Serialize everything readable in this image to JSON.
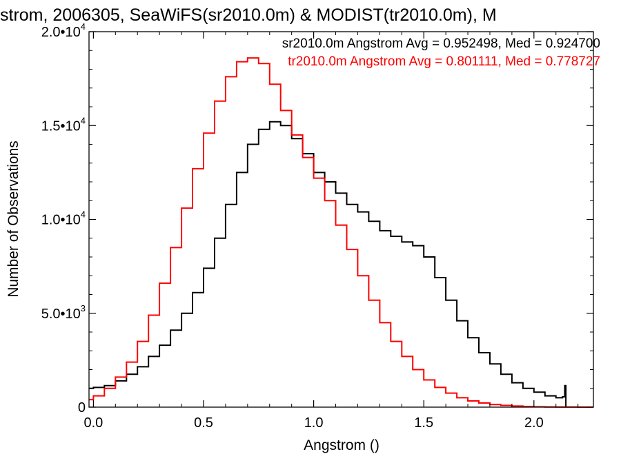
{
  "chart_data": {
    "type": "line",
    "title": "strom, 2006305, SeaWiFS(sr2010.0m) & MODIST(tr2010.0m), M",
    "xlabel": "Angstrom ()",
    "ylabel": "Number of Observations",
    "xlim": [
      -0.02,
      2.27
    ],
    "ylim": [
      0,
      20000
    ],
    "grid": false,
    "legend_position": "top-right",
    "x_ticks": [
      {
        "value": 0.0,
        "label": "0.0"
      },
      {
        "value": 0.5,
        "label": "0.5"
      },
      {
        "value": 1.0,
        "label": "1.0"
      },
      {
        "value": 1.5,
        "label": "1.5"
      },
      {
        "value": 2.0,
        "label": "2.0"
      }
    ],
    "y_ticks": [
      {
        "value": 0,
        "base": "0",
        "exp": ""
      },
      {
        "value": 5000,
        "base": "5.0•10",
        "exp": "3"
      },
      {
        "value": 10000,
        "base": "1.0•10",
        "exp": "4"
      },
      {
        "value": 15000,
        "base": "1.5•10",
        "exp": "4"
      },
      {
        "value": 20000,
        "base": "2.0•10",
        "exp": "4"
      }
    ],
    "series": [
      {
        "name": "sr2010.0m",
        "legend_label": "sr2010.0m Angstrom Avg = 0.952498, Med = 0.924700",
        "color": "#000000",
        "x": [
          -0.02,
          0.0,
          0.05,
          0.1,
          0.15,
          0.2,
          0.25,
          0.3,
          0.35,
          0.4,
          0.45,
          0.5,
          0.55,
          0.6,
          0.65,
          0.7,
          0.75,
          0.8,
          0.85,
          0.9,
          0.95,
          1.0,
          1.05,
          1.1,
          1.15,
          1.2,
          1.25,
          1.3,
          1.35,
          1.4,
          1.45,
          1.5,
          1.55,
          1.6,
          1.65,
          1.7,
          1.75,
          1.8,
          1.85,
          1.9,
          1.95,
          2.0,
          2.05,
          2.1,
          2.13,
          2.14,
          2.145
        ],
        "y": [
          1000,
          1050,
          1150,
          1400,
          1750,
          2150,
          2700,
          3300,
          4100,
          5000,
          6100,
          7400,
          9000,
          10800,
          12500,
          14000,
          14800,
          15200,
          15000,
          14300,
          13500,
          12500,
          12000,
          11400,
          10800,
          10400,
          9900,
          9400,
          9100,
          8800,
          8600,
          8000,
          6900,
          5700,
          4600,
          3700,
          2900,
          2300,
          1750,
          1300,
          1000,
          800,
          600,
          500,
          550,
          1150,
          0
        ]
      },
      {
        "name": "tr2010.0m",
        "legend_label": "tr2010.0m Angstrom Avg = 0.801111, Med = 0.778727",
        "color": "#ff0000",
        "x": [
          -0.02,
          0.0,
          0.05,
          0.1,
          0.15,
          0.2,
          0.25,
          0.3,
          0.35,
          0.4,
          0.45,
          0.5,
          0.55,
          0.6,
          0.65,
          0.7,
          0.75,
          0.8,
          0.85,
          0.9,
          0.95,
          1.0,
          1.05,
          1.1,
          1.15,
          1.2,
          1.25,
          1.3,
          1.35,
          1.4,
          1.45,
          1.5,
          1.55,
          1.6,
          1.65,
          1.7,
          1.75,
          1.8,
          1.85,
          1.9,
          1.95,
          2.0,
          2.05,
          2.1,
          2.15,
          2.2,
          2.27
        ],
        "y": [
          400,
          600,
          1000,
          1600,
          2400,
          3500,
          4900,
          6600,
          8500,
          10600,
          12700,
          14600,
          16300,
          17600,
          18400,
          18600,
          18300,
          17200,
          15800,
          14500,
          13300,
          12200,
          11000,
          9700,
          8400,
          7000,
          5700,
          4500,
          3500,
          2700,
          2000,
          1450,
          1050,
          750,
          500,
          330,
          220,
          140,
          90,
          60,
          35,
          20,
          10,
          5,
          2,
          0,
          0
        ]
      }
    ]
  }
}
